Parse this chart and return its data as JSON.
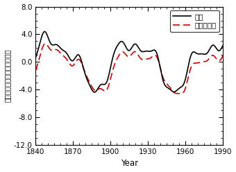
{
  "x_min": 1840,
  "x_max": 1990,
  "y_min": -12.0,
  "y_max": 8.0,
  "x_ticks": [
    1840,
    1870,
    1900,
    1930,
    1960,
    1990
  ],
  "y_ticks": [
    -12.0,
    -8.0,
    -4.0,
    0.0,
    4.0,
    8.0
  ],
  "xlabel": "Year",
  "ylabel": "一日の長さの変化（ミリ秒）",
  "legend_obs": "観測",
  "legend_model": "モデル計算",
  "obs_color": "#000000",
  "model_color": "#cc0000",
  "background": "#ffffff",
  "figsize": [
    3.4,
    2.48
  ],
  "dpi": 100
}
